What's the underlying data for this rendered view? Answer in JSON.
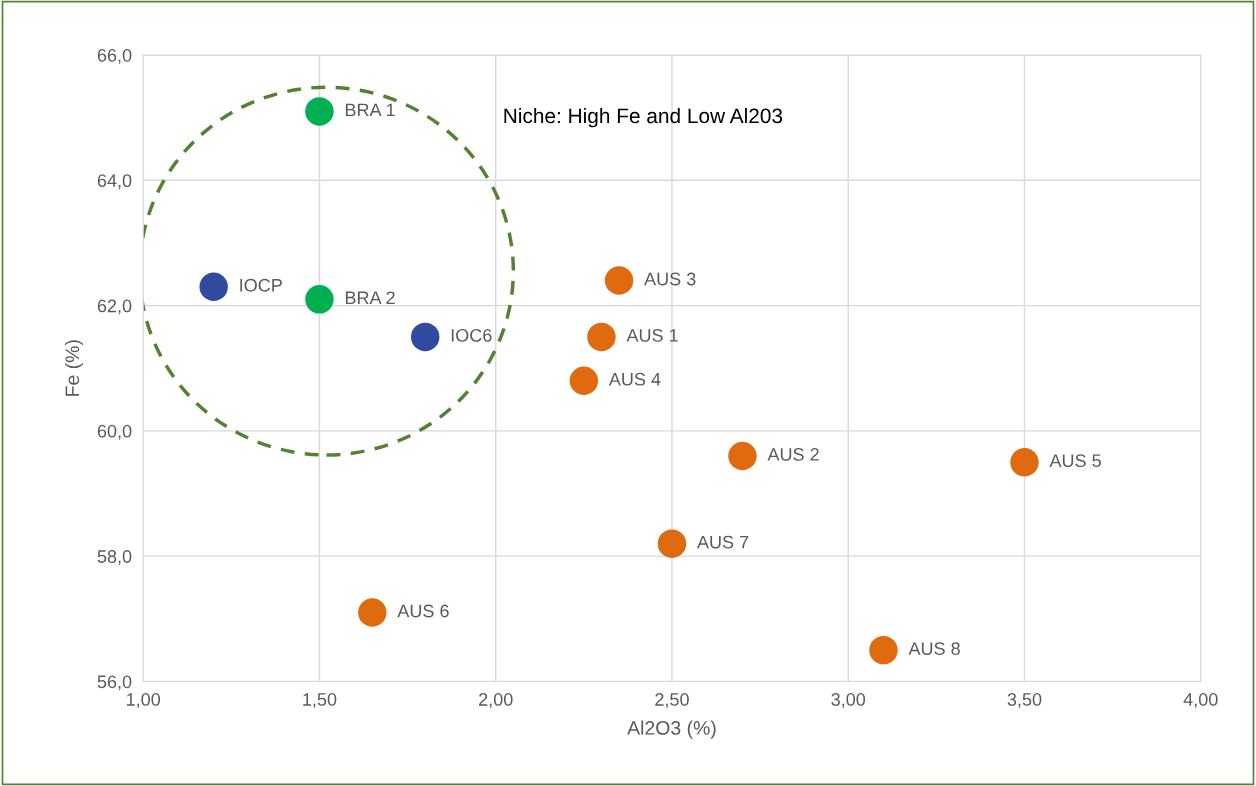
{
  "chart_data": {
    "type": "scatter",
    "xlabel": "Al2O3 (%)",
    "ylabel": "Fe (%)",
    "xlim": [
      1.0,
      4.0
    ],
    "xticks": [
      {
        "value": 1.0,
        "label": "1,00"
      },
      {
        "value": 1.5,
        "label": "1,50"
      },
      {
        "value": 2.0,
        "label": "2,00"
      },
      {
        "value": 2.5,
        "label": "2,50"
      },
      {
        "value": 3.0,
        "label": "3,00"
      },
      {
        "value": 3.5,
        "label": "3,50"
      },
      {
        "value": 4.0,
        "label": "4,00"
      }
    ],
    "ylim": [
      56,
      66
    ],
    "yticks": [
      {
        "value": 56,
        "label": "56,0"
      },
      {
        "value": 58,
        "label": "58,0"
      },
      {
        "value": 60,
        "label": "60,0"
      },
      {
        "value": 62,
        "label": "62,0"
      },
      {
        "value": 64,
        "label": "64,0"
      },
      {
        "value": 66,
        "label": "66,0"
      }
    ],
    "grid": true,
    "marker": "circle",
    "series": [
      {
        "color": "#2f4a9e",
        "x": [
          1.2,
          1.8
        ],
        "values": [
          62.3,
          61.5
        ],
        "value_labels": [
          "IOCP",
          "IOC6"
        ]
      },
      {
        "color": "#00b050",
        "x": [
          1.5,
          1.5
        ],
        "values": [
          65.1,
          62.1
        ],
        "value_labels": [
          "BRA 1",
          "BRA 2"
        ]
      },
      {
        "color": "#e06a10",
        "x": [
          2.35,
          2.3,
          2.25,
          2.7,
          3.5,
          2.5,
          1.65,
          3.1
        ],
        "values": [
          62.4,
          61.5,
          60.8,
          59.6,
          59.5,
          58.2,
          57.1,
          56.5
        ],
        "value_labels": [
          "AUS 3",
          "AUS 1",
          "AUS 4",
          "AUS 2",
          "AUS 5",
          "AUS 7",
          "AUS 6",
          "AUS 8"
        ]
      }
    ],
    "annotations": [
      "Niche: High Fe and Low Al203"
    ]
  }
}
